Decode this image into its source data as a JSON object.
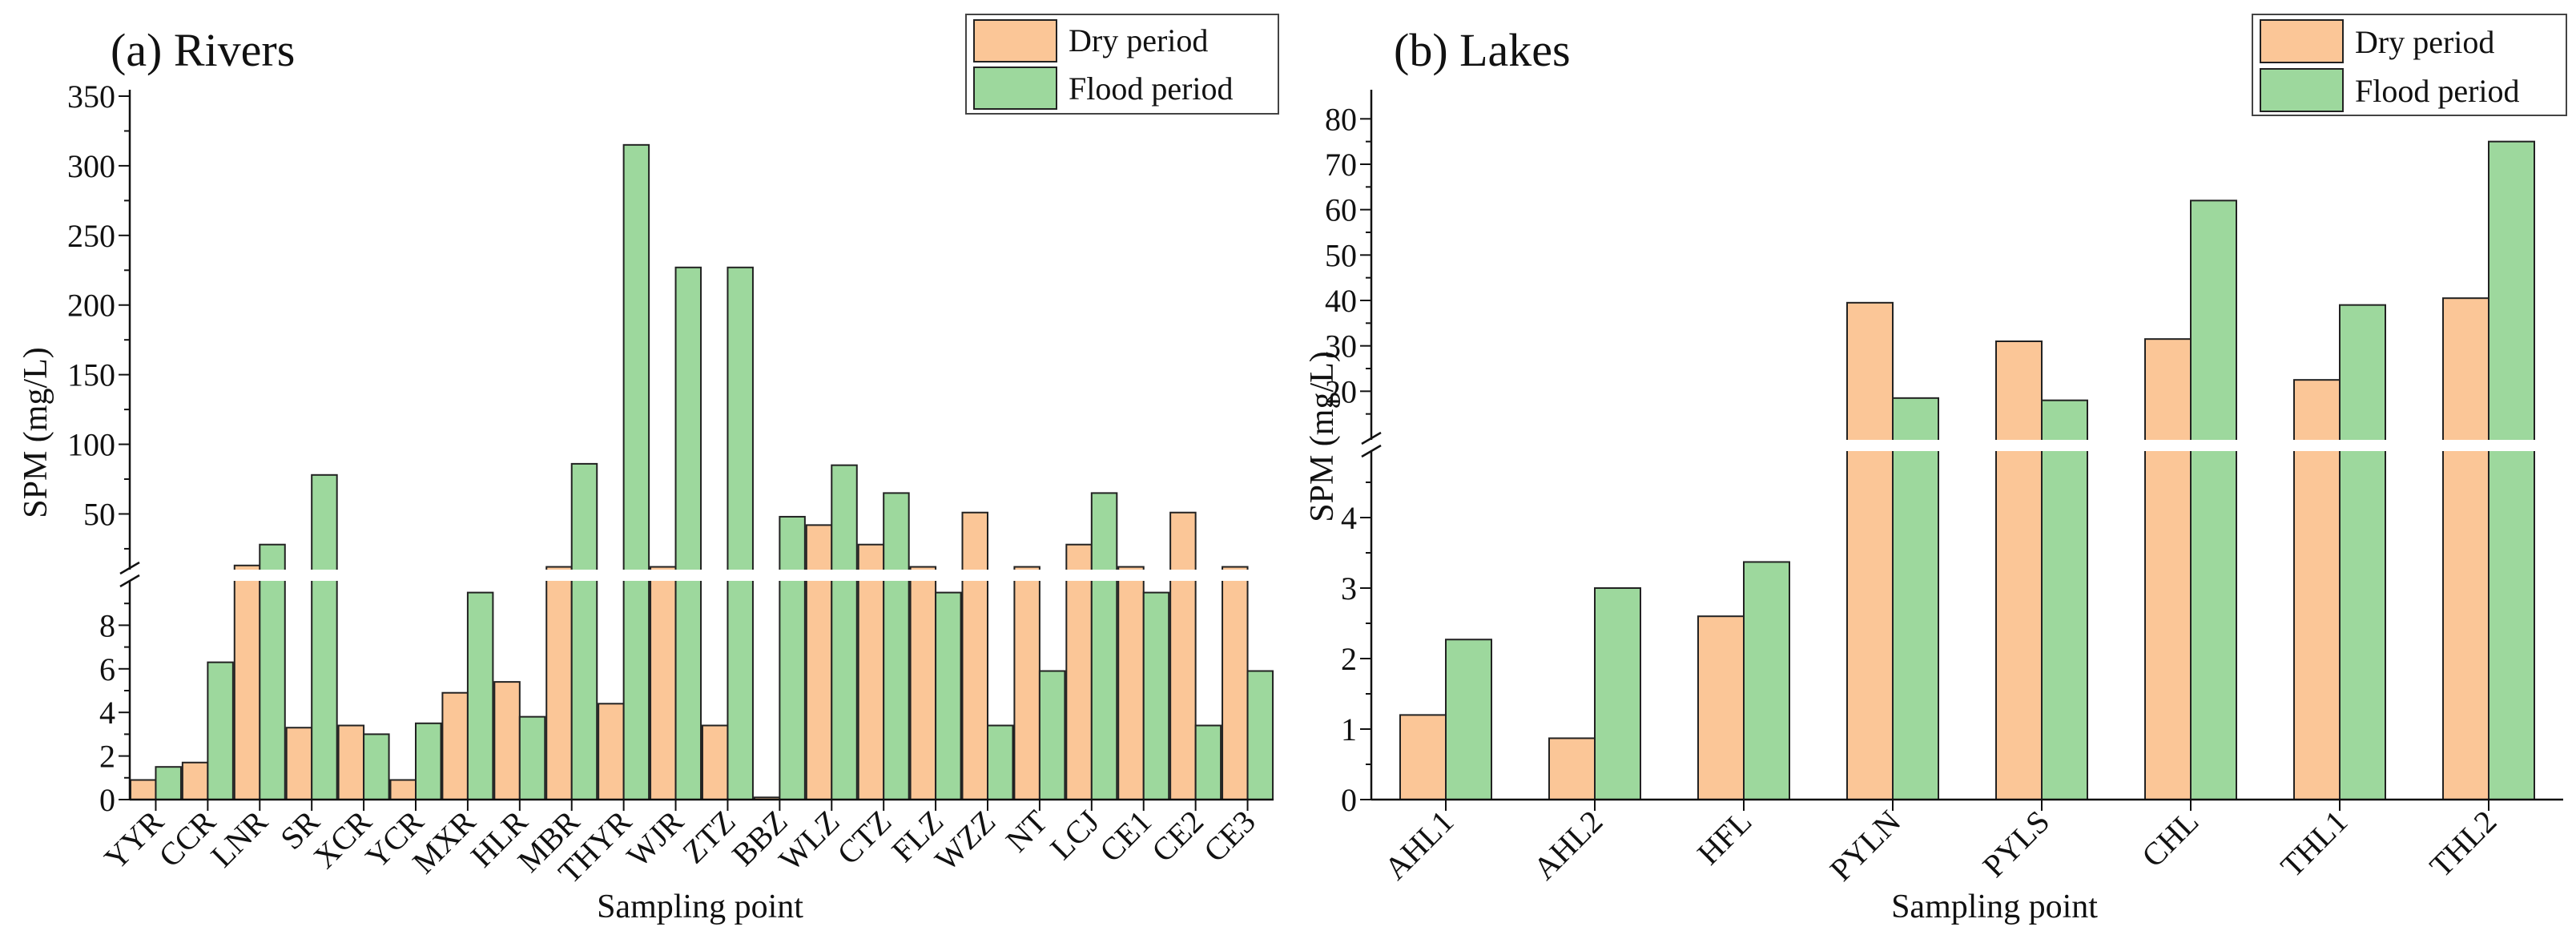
{
  "colors": {
    "dry": "#fbc697",
    "flood": "#9dd89d",
    "bar_stroke": "#222222",
    "axis": "#111111",
    "break": "#ffffff"
  },
  "chart_data": [
    {
      "type": "bar",
      "title": "(a) Rivers",
      "xlabel": "Sampling point",
      "ylabel": "SPM (mg/L)",
      "broken_axis": true,
      "lower_range": [
        0,
        10
      ],
      "upper_range": [
        10,
        350
      ],
      "lower_ticks": [
        0,
        2,
        4,
        6,
        8
      ],
      "upper_ticks": [
        50,
        100,
        150,
        200,
        250,
        300,
        350
      ],
      "categories": [
        "YYR",
        "CCR",
        "LNR",
        "SR",
        "XCR",
        "YCR",
        "MXR",
        "HLR",
        "MBR",
        "THYR",
        "WJR",
        "ZTZ",
        "BBZ",
        "WLZ",
        "CTZ",
        "FLZ",
        "WZZ",
        "NT",
        "LCJ",
        "CE1",
        "CE2",
        "CE3"
      ],
      "series": [
        {
          "name": "Dry period",
          "values": [
            0.9,
            1.7,
            13,
            3.3,
            3.4,
            0.9,
            4.9,
            5.4,
            12,
            4.4,
            12,
            3.4,
            0.1,
            42,
            28,
            12,
            51,
            12,
            28,
            12,
            51,
            12
          ]
        },
        {
          "name": "Flood period",
          "values": [
            1.5,
            6.3,
            28,
            78,
            3.0,
            3.5,
            9.5,
            3.8,
            86,
            315,
            227,
            227,
            48,
            85,
            65,
            9.5,
            3.4,
            5.9,
            65,
            9.5,
            3.4,
            5.9
          ]
        }
      ],
      "legend_position": "top-right",
      "tick_labels_rotated": true
    },
    {
      "type": "bar",
      "title": "(b) Lakes",
      "xlabel": "Sampling point",
      "ylabel": "SPM (mg/L)",
      "broken_axis": true,
      "lower_range": [
        0,
        5
      ],
      "upper_range": [
        10,
        85
      ],
      "lower_ticks": [
        0,
        1,
        2,
        3,
        4
      ],
      "upper_ticks": [
        20,
        30,
        40,
        50,
        60,
        70,
        80
      ],
      "categories": [
        "AHL1",
        "AHL2",
        "HFL",
        "PYLN",
        "PYLS",
        "CHL",
        "THL1",
        "THL2"
      ],
      "series": [
        {
          "name": "Dry period",
          "values": [
            1.2,
            0.87,
            2.6,
            39.5,
            31,
            31.5,
            22.5,
            40.5
          ]
        },
        {
          "name": "Flood period",
          "values": [
            2.27,
            3.0,
            3.37,
            18.5,
            18,
            62,
            39,
            75
          ]
        }
      ],
      "legend_position": "top-right",
      "tick_labels_rotated": true
    }
  ]
}
